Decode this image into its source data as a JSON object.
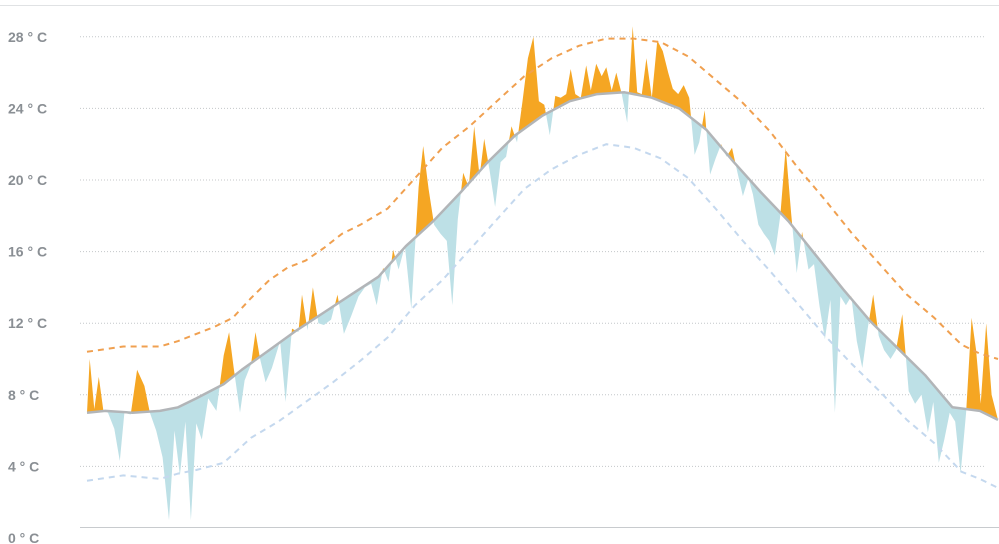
{
  "chart_data": {
    "type": "area",
    "title": "",
    "xlabel": "",
    "ylabel": "",
    "ylim": [
      0,
      29
    ],
    "y_ticks": [
      0,
      4,
      8,
      12,
      16,
      20,
      24,
      28
    ],
    "y_tick_labels": [
      "0 ° C",
      "4 ° C",
      "8 ° C",
      "12 ° C",
      "16 ° C",
      "20 ° C",
      "24 ° C",
      "28 ° C"
    ],
    "grid": true,
    "x_ticks_shown": false,
    "colors": {
      "above_mean": "#f5a623",
      "below_mean": "#bde0e6",
      "mean_line": "#b2b5b8",
      "upper_band": "#f0a050",
      "lower_band": "#c4d8ee"
    },
    "x_range": [
      0,
      100
    ],
    "mean": [
      [
        0,
        7.0
      ],
      [
        2,
        7.1
      ],
      [
        5,
        7.0
      ],
      [
        8,
        7.1
      ],
      [
        10,
        7.3
      ],
      [
        12,
        7.8
      ],
      [
        15,
        8.6
      ],
      [
        17,
        9.4
      ],
      [
        20,
        10.5
      ],
      [
        23,
        11.6
      ],
      [
        26,
        12.6
      ],
      [
        29,
        13.6
      ],
      [
        32,
        14.6
      ],
      [
        35,
        16.3
      ],
      [
        38,
        17.7
      ],
      [
        41,
        19.3
      ],
      [
        44,
        21.0
      ],
      [
        47,
        22.5
      ],
      [
        50,
        23.6
      ],
      [
        53,
        24.4
      ],
      [
        56,
        24.8
      ],
      [
        59,
        24.9
      ],
      [
        62,
        24.6
      ],
      [
        65,
        24.0
      ],
      [
        68,
        22.8
      ],
      [
        71,
        21.0
      ],
      [
        74,
        19.3
      ],
      [
        77,
        17.7
      ],
      [
        80,
        15.8
      ],
      [
        83,
        13.9
      ],
      [
        86,
        12.1
      ],
      [
        89,
        10.6
      ],
      [
        92,
        9.1
      ],
      [
        95,
        7.3
      ],
      [
        98,
        7.1
      ],
      [
        100,
        6.6
      ]
    ],
    "observed": [
      [
        0,
        7.0
      ],
      [
        0.3,
        10.0
      ],
      [
        0.8,
        7.2
      ],
      [
        1.3,
        9.0
      ],
      [
        1.8,
        7.1
      ],
      [
        2.3,
        7.0
      ],
      [
        3,
        6.1
      ],
      [
        3.6,
        4.3
      ],
      [
        4.1,
        7.0
      ],
      [
        4.8,
        6.9
      ],
      [
        5.5,
        9.4
      ],
      [
        6.3,
        8.5
      ],
      [
        6.9,
        7.0
      ],
      [
        7.6,
        6.0
      ],
      [
        8.3,
        4.5
      ],
      [
        9.0,
        1.0
      ],
      [
        9.6,
        6.0
      ],
      [
        10.2,
        3.5
      ],
      [
        10.8,
        6.5
      ],
      [
        11.4,
        1.0
      ],
      [
        12.0,
        6.4
      ],
      [
        12.6,
        5.5
      ],
      [
        13.3,
        7.8
      ],
      [
        14.2,
        7.1
      ],
      [
        15.0,
        10.2
      ],
      [
        15.6,
        11.5
      ],
      [
        16.1,
        9.5
      ],
      [
        16.8,
        7.0
      ],
      [
        17.3,
        8.8
      ],
      [
        18.0,
        9.7
      ],
      [
        18.5,
        11.5
      ],
      [
        19.0,
        10.0
      ],
      [
        19.6,
        8.7
      ],
      [
        20.3,
        9.5
      ],
      [
        21.2,
        11.0
      ],
      [
        21.8,
        7.6
      ],
      [
        22.5,
        11.7
      ],
      [
        23.2,
        11.5
      ],
      [
        23.6,
        13.6
      ],
      [
        24.2,
        11.6
      ],
      [
        24.8,
        14.0
      ],
      [
        25.4,
        12.0
      ],
      [
        26.0,
        11.9
      ],
      [
        26.8,
        12.2
      ],
      [
        27.5,
        13.6
      ],
      [
        28.2,
        11.4
      ],
      [
        29.0,
        12.4
      ],
      [
        29.8,
        13.5
      ],
      [
        30.5,
        14.0
      ],
      [
        31.2,
        14.2
      ],
      [
        31.8,
        13.0
      ],
      [
        32.5,
        15.1
      ],
      [
        33.1,
        14.3
      ],
      [
        33.6,
        16.1
      ],
      [
        34.2,
        15.0
      ],
      [
        34.9,
        16.3
      ],
      [
        35.6,
        12.8
      ],
      [
        36.4,
        19.6
      ],
      [
        36.9,
        21.9
      ],
      [
        37.5,
        19.5
      ],
      [
        38.1,
        17.5
      ],
      [
        38.8,
        17.0
      ],
      [
        39.5,
        16.6
      ],
      [
        40.1,
        13.0
      ],
      [
        40.7,
        17.8
      ],
      [
        41.3,
        20.4
      ],
      [
        41.9,
        19.6
      ],
      [
        42.5,
        23.0
      ],
      [
        43.1,
        20.2
      ],
      [
        43.6,
        22.3
      ],
      [
        44.2,
        20.5
      ],
      [
        44.8,
        18.5
      ],
      [
        45.4,
        21.0
      ],
      [
        46.0,
        21.3
      ],
      [
        46.6,
        23.0
      ],
      [
        47.2,
        22.1
      ],
      [
        47.8,
        24.4
      ],
      [
        48.4,
        26.8
      ],
      [
        49.0,
        28.0
      ],
      [
        49.6,
        24.4
      ],
      [
        50.2,
        24.2
      ],
      [
        50.8,
        22.5
      ],
      [
        51.4,
        24.7
      ],
      [
        52.0,
        24.6
      ],
      [
        52.6,
        24.8
      ],
      [
        53.1,
        26.2
      ],
      [
        53.6,
        24.8
      ],
      [
        54.2,
        24.6
      ],
      [
        54.8,
        26.4
      ],
      [
        55.3,
        25.0
      ],
      [
        55.9,
        26.5
      ],
      [
        56.5,
        25.8
      ],
      [
        57.0,
        26.3
      ],
      [
        57.6,
        25.0
      ],
      [
        58.1,
        26.0
      ],
      [
        58.7,
        24.8
      ],
      [
        59.3,
        23.2
      ],
      [
        59.9,
        28.6
      ],
      [
        60.4,
        24.9
      ],
      [
        60.9,
        24.8
      ],
      [
        61.4,
        26.8
      ],
      [
        62.0,
        24.6
      ],
      [
        62.6,
        27.8
      ],
      [
        63.2,
        27.2
      ],
      [
        63.8,
        26.0
      ],
      [
        64.3,
        25.1
      ],
      [
        64.9,
        24.8
      ],
      [
        65.5,
        25.3
      ],
      [
        66.1,
        24.6
      ],
      [
        66.7,
        21.4
      ],
      [
        67.2,
        22.1
      ],
      [
        67.8,
        23.9
      ],
      [
        68.4,
        20.3
      ],
      [
        69.0,
        21.2
      ],
      [
        69.6,
        22.0
      ],
      [
        70.2,
        21.3
      ],
      [
        70.8,
        21.8
      ],
      [
        71.4,
        20.4
      ],
      [
        72.0,
        19.1
      ],
      [
        72.6,
        20.1
      ],
      [
        73.1,
        19.2
      ],
      [
        73.7,
        17.5
      ],
      [
        74.3,
        17.0
      ],
      [
        74.9,
        16.6
      ],
      [
        75.5,
        15.8
      ],
      [
        76.1,
        18.0
      ],
      [
        76.7,
        21.8
      ],
      [
        77.3,
        18.1
      ],
      [
        77.9,
        14.8
      ],
      [
        78.5,
        17.1
      ],
      [
        79.2,
        15.0
      ],
      [
        79.8,
        15.3
      ],
      [
        80.4,
        13.0
      ],
      [
        81.0,
        11.1
      ],
      [
        81.6,
        13.3
      ],
      [
        82.1,
        7.0
      ],
      [
        82.7,
        13.5
      ],
      [
        83.3,
        13.0
      ],
      [
        83.9,
        13.5
      ],
      [
        84.5,
        11.0
      ],
      [
        85.1,
        9.5
      ],
      [
        85.7,
        11.7
      ],
      [
        86.3,
        13.6
      ],
      [
        86.9,
        11.3
      ],
      [
        87.5,
        10.5
      ],
      [
        88.2,
        10.0
      ],
      [
        88.8,
        10.5
      ],
      [
        89.5,
        12.5
      ],
      [
        90.2,
        8.2
      ],
      [
        90.9,
        7.5
      ],
      [
        91.6,
        8.0
      ],
      [
        92.3,
        5.9
      ],
      [
        92.9,
        7.6
      ],
      [
        93.5,
        4.2
      ],
      [
        94.1,
        5.5
      ],
      [
        94.7,
        7.0
      ],
      [
        95.3,
        6.5
      ],
      [
        95.9,
        3.6
      ],
      [
        96.5,
        7.0
      ],
      [
        97.1,
        12.3
      ],
      [
        97.6,
        10.5
      ],
      [
        98.1,
        7.5
      ],
      [
        98.7,
        12.0
      ],
      [
        99.3,
        8.0
      ],
      [
        100,
        6.6
      ]
    ],
    "upper_band": [
      [
        0,
        10.4
      ],
      [
        4,
        10.7
      ],
      [
        8,
        10.7
      ],
      [
        10,
        11.0
      ],
      [
        12,
        11.4
      ],
      [
        14,
        11.8
      ],
      [
        16,
        12.3
      ],
      [
        18,
        13.4
      ],
      [
        20,
        14.4
      ],
      [
        22,
        15.1
      ],
      [
        24,
        15.5
      ],
      [
        26,
        16.2
      ],
      [
        28,
        17.0
      ],
      [
        30,
        17.5
      ],
      [
        33,
        18.4
      ],
      [
        36,
        20.1
      ],
      [
        39,
        21.8
      ],
      [
        42,
        23.0
      ],
      [
        45,
        24.4
      ],
      [
        48,
        25.8
      ],
      [
        51,
        26.8
      ],
      [
        54,
        27.5
      ],
      [
        57,
        27.9
      ],
      [
        60,
        27.9
      ],
      [
        63,
        27.7
      ],
      [
        66,
        26.9
      ],
      [
        69,
        25.6
      ],
      [
        72,
        24.3
      ],
      [
        75,
        22.7
      ],
      [
        78,
        20.7
      ],
      [
        81,
        18.9
      ],
      [
        84,
        17.0
      ],
      [
        87,
        15.3
      ],
      [
        90,
        13.6
      ],
      [
        93,
        12.3
      ],
      [
        96,
        10.8
      ],
      [
        98,
        10.3
      ],
      [
        100,
        10.0
      ]
    ],
    "lower_band": [
      [
        0,
        3.2
      ],
      [
        4,
        3.5
      ],
      [
        8,
        3.3
      ],
      [
        10,
        3.6
      ],
      [
        12,
        3.8
      ],
      [
        15,
        4.2
      ],
      [
        18,
        5.6
      ],
      [
        21,
        6.5
      ],
      [
        24,
        7.6
      ],
      [
        27,
        8.7
      ],
      [
        30,
        9.9
      ],
      [
        33,
        11.2
      ],
      [
        36,
        13.0
      ],
      [
        39,
        14.4
      ],
      [
        42,
        16.1
      ],
      [
        45,
        17.8
      ],
      [
        48,
        19.5
      ],
      [
        51,
        20.6
      ],
      [
        54,
        21.4
      ],
      [
        57,
        22.0
      ],
      [
        60,
        21.8
      ],
      [
        63,
        21.2
      ],
      [
        66,
        20.1
      ],
      [
        69,
        18.4
      ],
      [
        72,
        16.6
      ],
      [
        75,
        14.9
      ],
      [
        78,
        13.1
      ],
      [
        81,
        11.3
      ],
      [
        84,
        9.7
      ],
      [
        87,
        8.2
      ],
      [
        90,
        6.6
      ],
      [
        93,
        5.3
      ],
      [
        96,
        3.7
      ],
      [
        98,
        3.3
      ],
      [
        100,
        2.8
      ]
    ]
  }
}
